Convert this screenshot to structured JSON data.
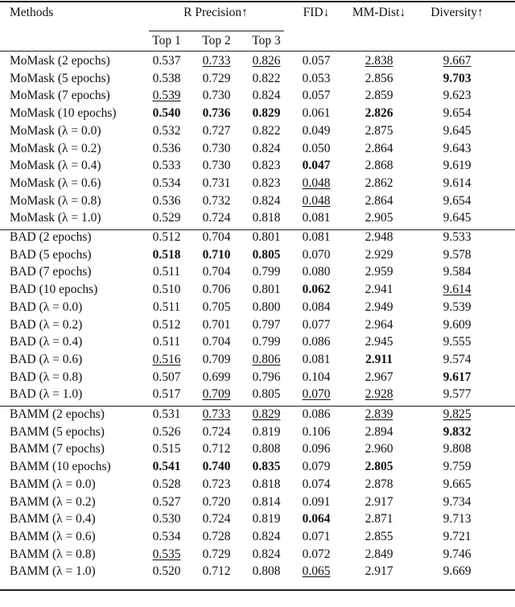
{
  "header": {
    "methods": "Methods",
    "r_precision": "R Precision↑",
    "top1": "Top 1",
    "top2": "Top 2",
    "top3": "Top 3",
    "fid": "FID↓",
    "mm_dist": "MM-Dist↓",
    "diversity": "Diversity↑"
  },
  "sections": [
    {
      "rows": [
        {
          "method": "MoMask (2 epochs)",
          "cells": [
            "0.537",
            "0.733",
            "0.826",
            "0.057",
            "2.838",
            "9.667"
          ],
          "bold": [],
          "underline": [
            1,
            2,
            4,
            5
          ]
        },
        {
          "method": "MoMask (5 epochs)",
          "cells": [
            "0.538",
            "0.729",
            "0.822",
            "0.053",
            "2.856",
            "9.703"
          ],
          "bold": [
            5
          ],
          "underline": []
        },
        {
          "method": "MoMask (7 epochs)",
          "cells": [
            "0.539",
            "0.730",
            "0.824",
            "0.057",
            "2.859",
            "9.623"
          ],
          "bold": [],
          "underline": [
            0
          ]
        },
        {
          "method": "MoMask (10 epochs)",
          "cells": [
            "0.540",
            "0.736",
            "0.829",
            "0.061",
            "2.826",
            "9.654"
          ],
          "bold": [
            0,
            1,
            2,
            4
          ],
          "underline": []
        },
        {
          "method": "MoMask (λ = 0.0)",
          "cells": [
            "0.532",
            "0.727",
            "0.822",
            "0.049",
            "2.875",
            "9.645"
          ],
          "bold": [],
          "underline": []
        },
        {
          "method": "MoMask (λ = 0.2)",
          "cells": [
            "0.536",
            "0.730",
            "0.824",
            "0.050",
            "2.864",
            "9.643"
          ],
          "bold": [],
          "underline": []
        },
        {
          "method": "MoMask (λ = 0.4)",
          "cells": [
            "0.533",
            "0.730",
            "0.823",
            "0.047",
            "2.868",
            "9.619"
          ],
          "bold": [
            3
          ],
          "underline": []
        },
        {
          "method": "MoMask (λ = 0.6)",
          "cells": [
            "0.534",
            "0.731",
            "0.823",
            "0.048",
            "2.862",
            "9.614"
          ],
          "bold": [],
          "underline": [
            3
          ]
        },
        {
          "method": "MoMask (λ = 0.8)",
          "cells": [
            "0.536",
            "0.732",
            "0.824",
            "0.048",
            "2.864",
            "9.654"
          ],
          "bold": [],
          "underline": [
            3
          ]
        },
        {
          "method": "MoMask (λ = 1.0)",
          "cells": [
            "0.529",
            "0.724",
            "0.818",
            "0.081",
            "2.905",
            "9.645"
          ],
          "bold": [],
          "underline": []
        }
      ]
    },
    {
      "rows": [
        {
          "method": "BAD (2 epochs)",
          "cells": [
            "0.512",
            "0.704",
            "0.801",
            "0.081",
            "2.948",
            "9.533"
          ],
          "bold": [],
          "underline": []
        },
        {
          "method": "BAD (5 epochs)",
          "cells": [
            "0.518",
            "0.710",
            "0.805",
            "0.070",
            "2.929",
            "9.578"
          ],
          "bold": [
            0,
            1,
            2
          ],
          "underline": []
        },
        {
          "method": "BAD (7 epochs)",
          "cells": [
            "0.511",
            "0.704",
            "0.799",
            "0.080",
            "2.959",
            "9.584"
          ],
          "bold": [],
          "underline": []
        },
        {
          "method": "BAD (10 epochs)",
          "cells": [
            "0.510",
            "0.706",
            "0.801",
            "0.062",
            "2.941",
            "9.614"
          ],
          "bold": [
            3
          ],
          "underline": [
            5
          ]
        },
        {
          "method": "BAD (λ = 0.0)",
          "cells": [
            "0.511",
            "0.705",
            "0.800",
            "0.084",
            "2.949",
            "9.539"
          ],
          "bold": [],
          "underline": []
        },
        {
          "method": "BAD (λ = 0.2)",
          "cells": [
            "0.512",
            "0.701",
            "0.797",
            "0.077",
            "2.964",
            "9.609"
          ],
          "bold": [],
          "underline": []
        },
        {
          "method": "BAD (λ = 0.4)",
          "cells": [
            "0.511",
            "0.704",
            "0.799",
            "0.086",
            "2.945",
            "9.555"
          ],
          "bold": [],
          "underline": []
        },
        {
          "method": "BAD (λ = 0.6)",
          "cells": [
            "0.516",
            "0.709",
            "0.806",
            "0.081",
            "2.911",
            "9.574"
          ],
          "bold": [
            4
          ],
          "underline": [
            0,
            2
          ]
        },
        {
          "method": "BAD (λ = 0.8)",
          "cells": [
            "0.507",
            "0.699",
            "0.796",
            "0.104",
            "2.967",
            "9.617"
          ],
          "bold": [
            5
          ],
          "underline": []
        },
        {
          "method": "BAD (λ = 1.0)",
          "cells": [
            "0.517",
            "0.709",
            "0.805",
            "0.070",
            "2.928",
            "9.577"
          ],
          "bold": [],
          "underline": [
            1,
            3,
            4
          ]
        }
      ]
    },
    {
      "rows": [
        {
          "method": "BAMM (2 epochs)",
          "cells": [
            "0.531",
            "0.733",
            "0.829",
            "0.086",
            "2.839",
            "9.825"
          ],
          "bold": [],
          "underline": [
            1,
            2,
            4,
            5
          ]
        },
        {
          "method": "BAMM (5 epochs)",
          "cells": [
            "0.526",
            "0.724",
            "0.819",
            "0.106",
            "2.894",
            "9.832"
          ],
          "bold": [
            5
          ],
          "underline": []
        },
        {
          "method": "BAMM (7 epochs)",
          "cells": [
            "0.515",
            "0.712",
            "0.808",
            "0.096",
            "2.960",
            "9.808"
          ],
          "bold": [],
          "underline": []
        },
        {
          "method": "BAMM (10 epochs)",
          "cells": [
            "0.541",
            "0.740",
            "0.835",
            "0.079",
            "2.805",
            "9.759"
          ],
          "bold": [
            0,
            1,
            2,
            4
          ],
          "underline": []
        },
        {
          "method": "BAMM (λ = 0.0)",
          "cells": [
            "0.528",
            "0.723",
            "0.818",
            "0.074",
            "2.878",
            "9.665"
          ],
          "bold": [],
          "underline": []
        },
        {
          "method": "BAMM (λ = 0.2)",
          "cells": [
            "0.527",
            "0.720",
            "0.814",
            "0.091",
            "2.917",
            "9.734"
          ],
          "bold": [],
          "underline": []
        },
        {
          "method": "BAMM (λ = 0.4)",
          "cells": [
            "0.530",
            "0.724",
            "0.819",
            "0.064",
            "2.871",
            "9.713"
          ],
          "bold": [
            3
          ],
          "underline": []
        },
        {
          "method": "BAMM (λ = 0.6)",
          "cells": [
            "0.534",
            "0.728",
            "0.824",
            "0.071",
            "2.855",
            "9.721"
          ],
          "bold": [],
          "underline": []
        },
        {
          "method": "BAMM (λ = 0.8)",
          "cells": [
            "0.535",
            "0.729",
            "0.824",
            "0.072",
            "2.849",
            "9.746"
          ],
          "bold": [],
          "underline": [
            0
          ]
        },
        {
          "method": "BAMM (λ = 1.0)",
          "cells": [
            "0.520",
            "0.712",
            "0.808",
            "0.065",
            "2.917",
            "9.669"
          ],
          "bold": [],
          "underline": [
            3
          ]
        }
      ]
    }
  ]
}
